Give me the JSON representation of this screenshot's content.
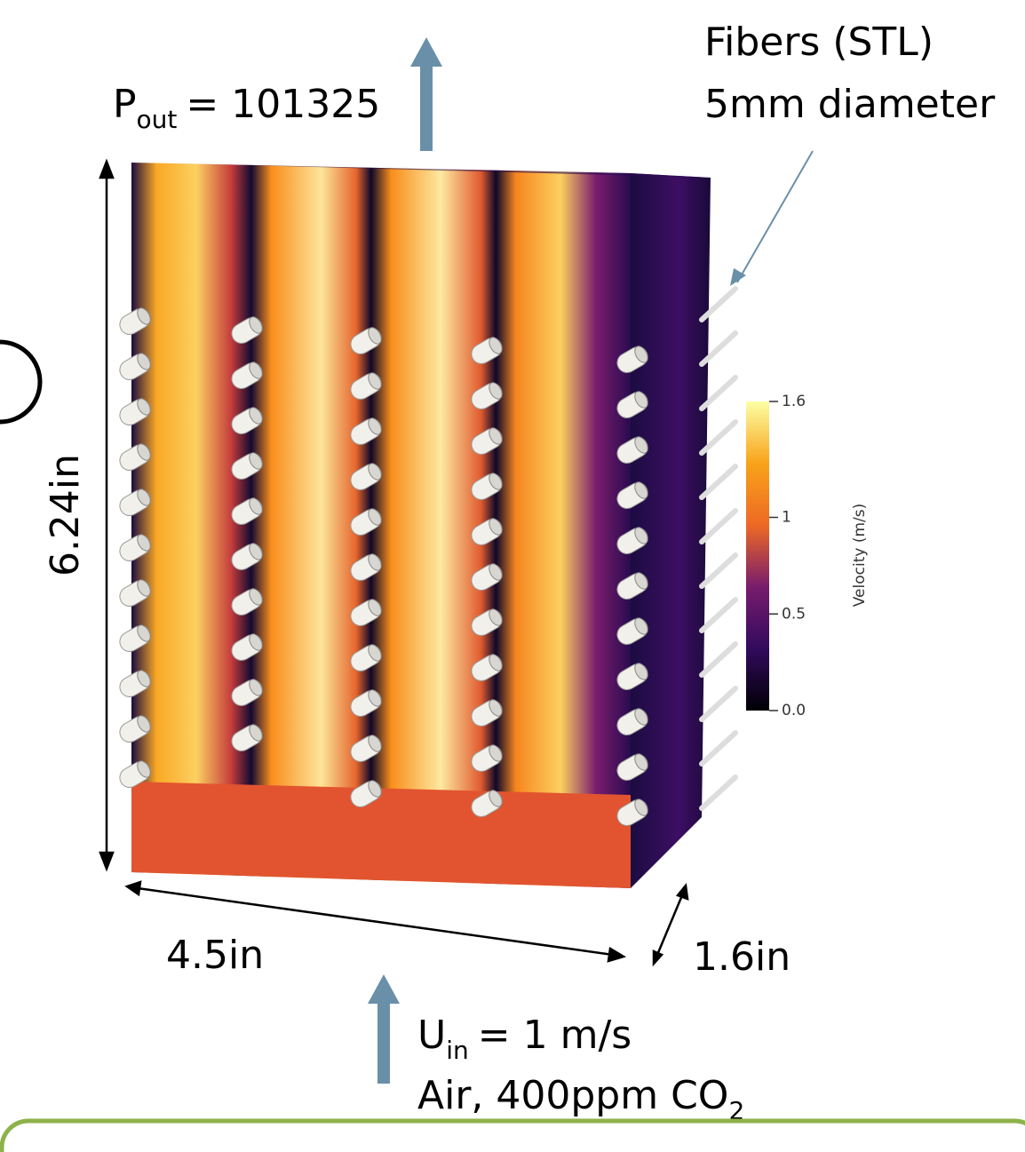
{
  "labels": {
    "p_out": {
      "main": "P",
      "sub": "out",
      "rest": "= 101325"
    },
    "fibers": [
      "Fibers (STL)",
      "5mm diameter"
    ],
    "height": "6.24in",
    "width": "4.5in",
    "depth": "1.6in",
    "u_in": {
      "main": "U",
      "sub": "in",
      "rest": "= 1 m/s"
    },
    "air": {
      "main": "Air, 400ppm CO",
      "sub": "2"
    }
  },
  "colorbar": {
    "title": "Velocity (m/s)",
    "range": [
      0,
      1.6
    ],
    "ticks": [
      {
        "value": 1.6,
        "label": "1.6"
      },
      1,
      0.5,
      {
        "value": 0,
        "label": "0.0"
      }
    ]
  }
}
